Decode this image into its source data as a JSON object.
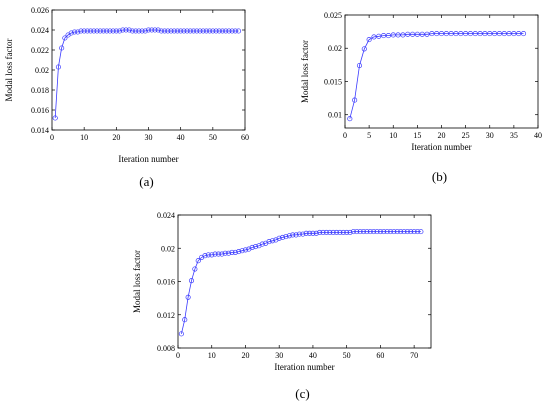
{
  "colors": {
    "series": "#3b3bff",
    "axis": "#000000",
    "background": "#ffffff"
  },
  "chart_data": [
    {
      "type": "line",
      "caption": "(a)",
      "xlabel": "Iteration number",
      "ylabel": "Modal loss factor",
      "xlim": [
        0,
        60
      ],
      "ylim": [
        0.014,
        0.026
      ],
      "xticks": [
        "0",
        "10",
        "20",
        "30",
        "40",
        "50",
        "60"
      ],
      "yticks": [
        "0.014",
        "0.016",
        "0.018",
        "0.02",
        "0.022",
        "0.024",
        "0.026"
      ],
      "grid": false,
      "marker": "circle",
      "x": [
        1,
        2,
        3,
        4,
        5,
        6,
        7,
        8,
        9,
        10,
        11,
        12,
        13,
        14,
        15,
        16,
        17,
        18,
        19,
        20,
        21,
        22,
        23,
        24,
        25,
        26,
        27,
        28,
        29,
        30,
        31,
        32,
        33,
        34,
        35,
        36,
        37,
        38,
        39,
        40,
        41,
        42,
        43,
        44,
        45,
        46,
        47,
        48,
        49,
        50,
        51,
        52,
        53,
        54,
        55,
        56,
        57,
        58
      ],
      "values": [
        0.0152,
        0.0203,
        0.0222,
        0.0232,
        0.0235,
        0.0237,
        0.0238,
        0.0238,
        0.0239,
        0.0239,
        0.0239,
        0.0239,
        0.0239,
        0.0239,
        0.0239,
        0.0239,
        0.0239,
        0.0239,
        0.0239,
        0.0239,
        0.0239,
        0.024,
        0.024,
        0.024,
        0.0239,
        0.0239,
        0.0239,
        0.0239,
        0.0239,
        0.024,
        0.024,
        0.024,
        0.024,
        0.0239,
        0.0239,
        0.0239,
        0.0239,
        0.0239,
        0.0239,
        0.0239,
        0.0239,
        0.0239,
        0.0239,
        0.0239,
        0.0239,
        0.0239,
        0.0239,
        0.0239,
        0.0239,
        0.0239,
        0.0239,
        0.0239,
        0.0239,
        0.0239,
        0.0239,
        0.0239,
        0.0239,
        0.0239
      ]
    },
    {
      "type": "line",
      "caption": "(b)",
      "xlabel": "Iteration number",
      "ylabel": "Modal loss factor",
      "xlim": [
        0,
        40
      ],
      "ylim": [
        0.008,
        0.025
      ],
      "xticks": [
        "0",
        "5",
        "10",
        "15",
        "20",
        "25",
        "30",
        "35",
        "40"
      ],
      "yticks": [
        "0.01",
        "0.015",
        "0.02",
        "0.025"
      ],
      "ytick_values": [
        0.01,
        0.015,
        0.02,
        0.025
      ],
      "grid": false,
      "marker": "circle",
      "x": [
        1,
        2,
        3,
        4,
        5,
        6,
        7,
        8,
        9,
        10,
        11,
        12,
        13,
        14,
        15,
        16,
        17,
        18,
        19,
        20,
        21,
        22,
        23,
        24,
        25,
        26,
        27,
        28,
        29,
        30,
        31,
        32,
        33,
        34,
        35,
        36,
        37
      ],
      "values": [
        0.0094,
        0.0122,
        0.0174,
        0.0199,
        0.0213,
        0.0217,
        0.0218,
        0.0219,
        0.0219,
        0.022,
        0.022,
        0.022,
        0.0221,
        0.0221,
        0.0221,
        0.0221,
        0.0221,
        0.0222,
        0.0222,
        0.0222,
        0.0222,
        0.0222,
        0.0222,
        0.0222,
        0.0222,
        0.0222,
        0.0222,
        0.0222,
        0.0222,
        0.0222,
        0.0222,
        0.0222,
        0.0222,
        0.0222,
        0.0222,
        0.0222,
        0.0222
      ]
    },
    {
      "type": "line",
      "caption": "(c)",
      "xlabel": "Iteration number",
      "ylabel": "Modal loss factor",
      "xlim": [
        0,
        75
      ],
      "ylim": [
        0.008,
        0.024
      ],
      "xticks": [
        "0",
        "10",
        "20",
        "30",
        "40",
        "50",
        "60",
        "70"
      ],
      "yticks": [
        "0.008",
        "0.012",
        "0.016",
        "0.02",
        "0.024"
      ],
      "grid": false,
      "marker": "circle",
      "x": [
        1,
        2,
        3,
        4,
        5,
        6,
        7,
        8,
        9,
        10,
        11,
        12,
        13,
        14,
        15,
        16,
        17,
        18,
        19,
        20,
        21,
        22,
        23,
        24,
        25,
        26,
        27,
        28,
        29,
        30,
        31,
        32,
        33,
        34,
        35,
        36,
        37,
        38,
        39,
        40,
        41,
        42,
        43,
        44,
        45,
        46,
        47,
        48,
        49,
        50,
        51,
        52,
        53,
        54,
        55,
        56,
        57,
        58,
        59,
        60,
        61,
        62,
        63,
        64,
        65,
        66,
        67,
        68,
        69,
        70,
        71,
        72
      ],
      "values": [
        0.0097,
        0.0114,
        0.0141,
        0.0161,
        0.0175,
        0.0185,
        0.0189,
        0.0191,
        0.0192,
        0.0192,
        0.0193,
        0.0193,
        0.0193,
        0.0194,
        0.0194,
        0.0195,
        0.0195,
        0.0196,
        0.0197,
        0.0198,
        0.0199,
        0.0201,
        0.0202,
        0.0203,
        0.0205,
        0.0206,
        0.0208,
        0.0209,
        0.021,
        0.0212,
        0.0213,
        0.0214,
        0.0215,
        0.0216,
        0.0216,
        0.0217,
        0.0217,
        0.0218,
        0.0218,
        0.0218,
        0.0218,
        0.0219,
        0.0219,
        0.0219,
        0.0219,
        0.0219,
        0.0219,
        0.0219,
        0.0219,
        0.0219,
        0.0219,
        0.022,
        0.022,
        0.022,
        0.022,
        0.022,
        0.022,
        0.022,
        0.022,
        0.022,
        0.022,
        0.022,
        0.022,
        0.022,
        0.022,
        0.022,
        0.022,
        0.022,
        0.022,
        0.022,
        0.022,
        0.022
      ]
    }
  ]
}
